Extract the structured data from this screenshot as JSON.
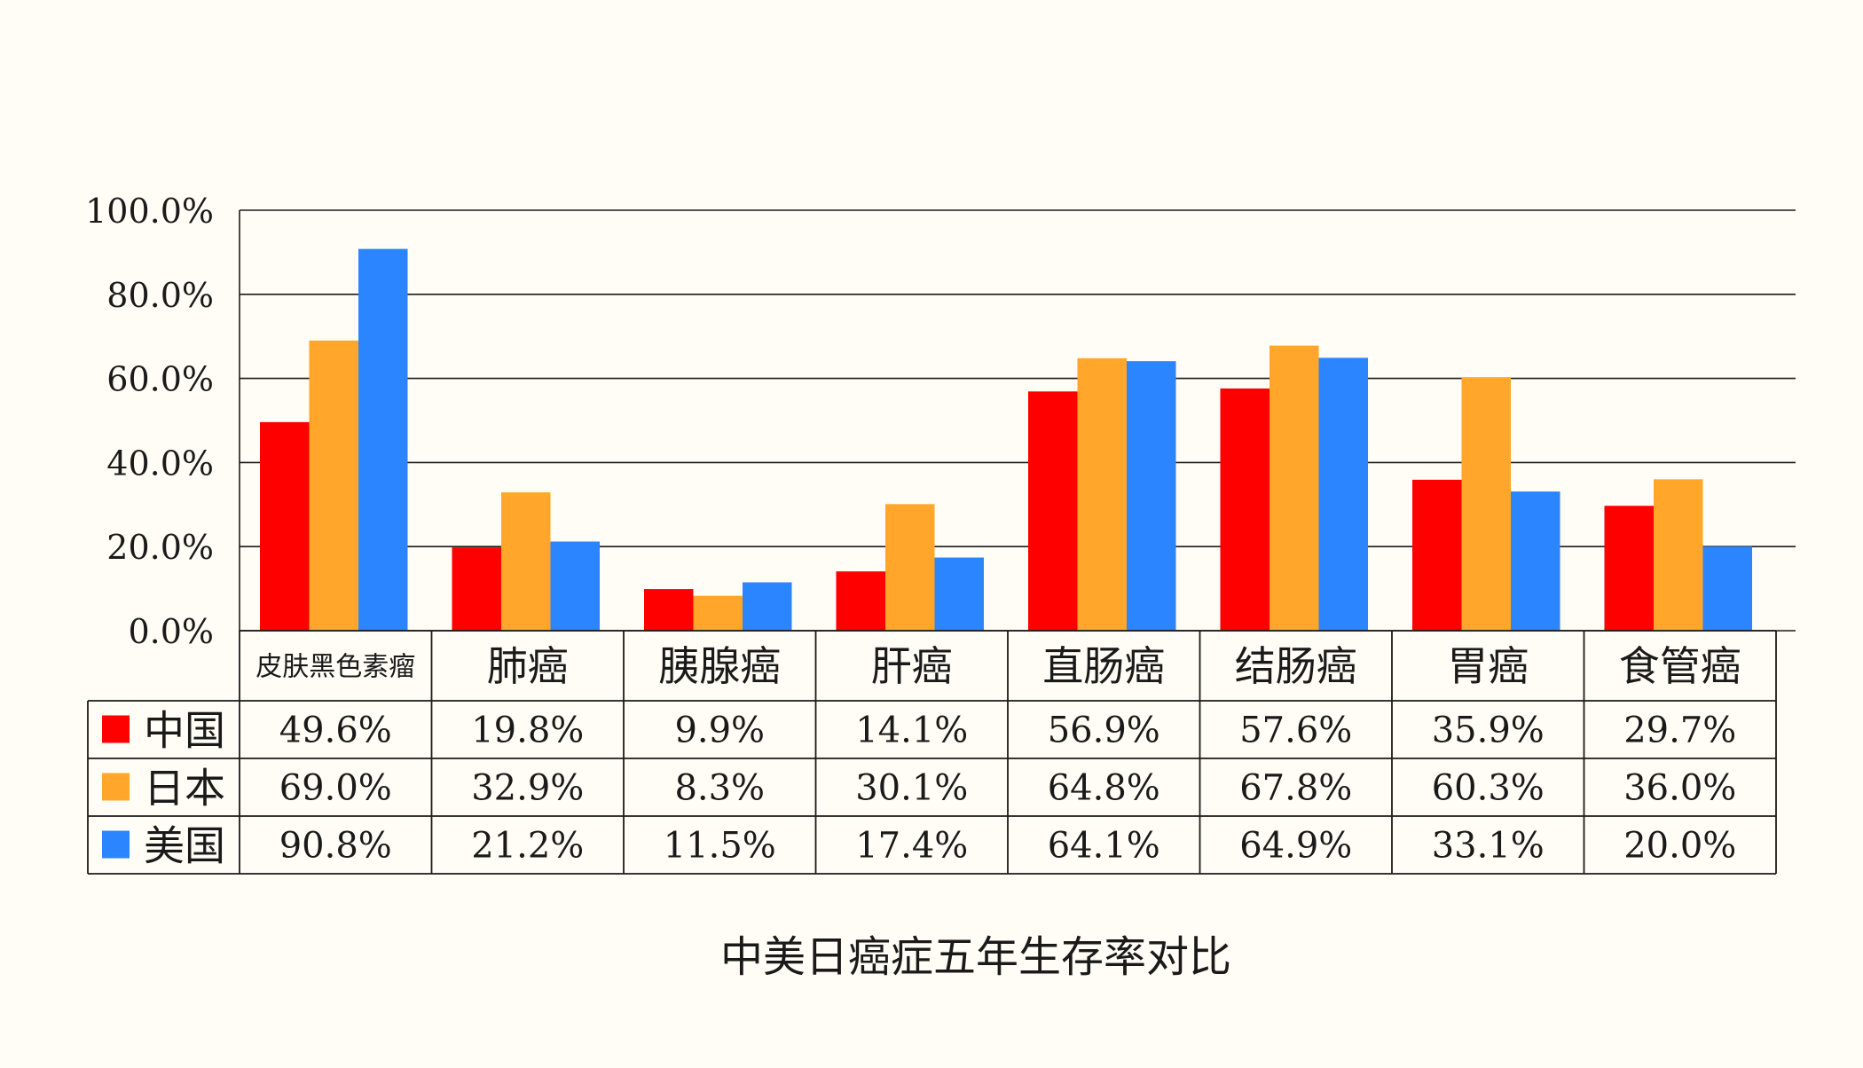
{
  "chart_data": {
    "type": "bar",
    "title": "中美日癌症五年生存率对比",
    "categories": [
      "皮肤黑色素瘤",
      "肺癌",
      "胰腺癌",
      "肝癌",
      "直肠癌",
      "结肠癌",
      "胃癌",
      "食管癌"
    ],
    "series": [
      {
        "name": "中国",
        "color": "#ff0000",
        "values": [
          49.6,
          19.8,
          9.9,
          14.1,
          56.9,
          57.6,
          35.9,
          29.7
        ],
        "labels": [
          "49.6%",
          "19.8%",
          "9.9%",
          "14.1%",
          "56.9%",
          "57.6%",
          "35.9%",
          "29.7%"
        ]
      },
      {
        "name": "日本",
        "color": "#ffa62b",
        "values": [
          69.0,
          32.9,
          8.3,
          30.1,
          64.8,
          67.8,
          60.3,
          36.0
        ],
        "labels": [
          "69.0%",
          "32.9%",
          "8.3%",
          "30.1%",
          "64.8%",
          "67.8%",
          "60.3%",
          "36.0%"
        ]
      },
      {
        "name": "美国",
        "color": "#2a85ff",
        "values": [
          90.8,
          21.2,
          11.5,
          17.4,
          64.1,
          64.9,
          33.1,
          20.0
        ],
        "labels": [
          "90.8%",
          "21.2%",
          "11.5%",
          "17.4%",
          "64.1%",
          "64.9%",
          "33.1%",
          "20.0%"
        ]
      }
    ],
    "ylim": [
      0,
      100
    ],
    "yticks": [
      "0.0%",
      "20.0%",
      "40.0%",
      "60.0%",
      "80.0%",
      "100.0%"
    ],
    "grid": true,
    "legend": "data-table"
  }
}
